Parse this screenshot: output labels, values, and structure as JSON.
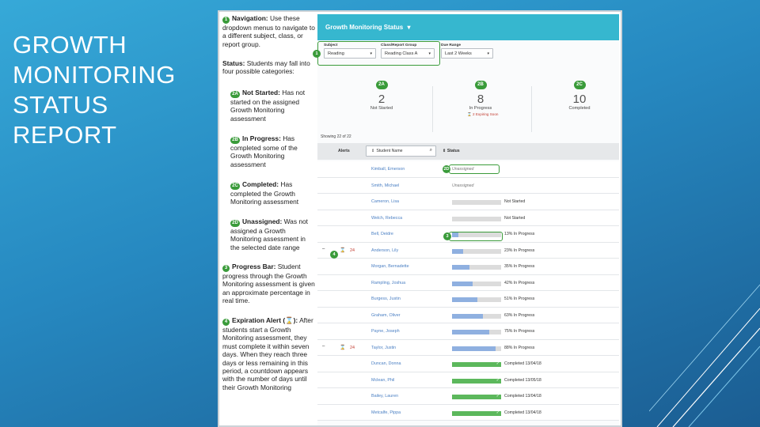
{
  "slide": {
    "title": "GROWTH MONITORING STATUS REPORT"
  },
  "notes": {
    "navigation": {
      "num": "1",
      "heading": "Navigation:",
      "text": "Use these dropdown menus to navigate to a different subject, class, or report group."
    },
    "status_intro": {
      "heading": "Status:",
      "text": "Students may fall into four possible categories:"
    },
    "not_started": {
      "num": "2A",
      "heading": "Not Started:",
      "text": "Has not started on the assigned Growth Monitoring assessment"
    },
    "in_progress": {
      "num": "2B",
      "heading": "In Progress:",
      "text": "Has completed some of the Growth Monitoring assessment"
    },
    "completed": {
      "num": "2C",
      "heading": "Completed:",
      "text": "Has completed the Growth Monitoring assessment"
    },
    "unassigned": {
      "num": "2D",
      "heading": "Unassigned:",
      "text": "Was not assigned a Growth Monitoring assessment in the selected date range"
    },
    "progress_bar": {
      "num": "3",
      "heading": "Progress Bar:",
      "text": "Student progress through the Growth Monitoring assessment is given an approximate percentage in real time."
    },
    "expiration": {
      "num": "4",
      "heading": "Expiration Alert (",
      "heading_end": "):",
      "text": "After students start a Growth Monitoring assessment, they must complete it within seven days. When they reach three days or less remaining in this period, a countdown appears with the number of days until their Growth Monitoring"
    }
  },
  "app": {
    "header_title": "Growth Monitoring Status",
    "header_caret": "▾",
    "filters": [
      {
        "label": "Subject",
        "value": "Reading"
      },
      {
        "label": "Class/Report Group",
        "value": "Reading Class A"
      },
      {
        "label": "Due Range",
        "value": "Last 2 Weeks"
      }
    ],
    "filter_marker": "1",
    "stats": [
      {
        "marker": "2A",
        "value": "2",
        "label": "Not Started"
      },
      {
        "marker": "2B",
        "value": "8",
        "label": "In Progress"
      },
      {
        "marker": "2C",
        "value": "10",
        "label": "Completed"
      }
    ],
    "expiring_soon": "2 Expiring Soon",
    "showing": "Showing 22 of 22",
    "columns": {
      "alerts": "Alerts",
      "student_name": "Student Name",
      "status": "Status"
    },
    "rows": [
      {
        "name": "Kimball, Emerson",
        "type": "unassigned",
        "status": "Unassigned"
      },
      {
        "name": "Smith, Michael",
        "type": "unassigned",
        "status": "Unassigned"
      },
      {
        "name": "Cameron, Lisa",
        "type": "bar",
        "progress": 0,
        "status": "Not Started"
      },
      {
        "name": "Welch, Rebecca",
        "type": "bar",
        "progress": 0,
        "status": "Not Started"
      },
      {
        "name": "Bell, Deidre",
        "type": "bar",
        "progress": 13,
        "status": "13% In Progress"
      },
      {
        "name": "Anderson, Lily",
        "type": "bar",
        "progress": 23,
        "status": "23% In Progress",
        "alert": "24",
        "dash": "–"
      },
      {
        "name": "Morgan, Bernadette",
        "type": "bar",
        "progress": 35,
        "status": "35% In Progress"
      },
      {
        "name": "Rampling, Joshua",
        "type": "bar",
        "progress": 42,
        "status": "42% In Progress"
      },
      {
        "name": "Burgess, Justin",
        "type": "bar",
        "progress": 51,
        "status": "51% In Progress"
      },
      {
        "name": "Graham, Oliver",
        "type": "bar",
        "progress": 63,
        "status": "63% In Progress"
      },
      {
        "name": "Payne, Joseph",
        "type": "bar",
        "progress": 75,
        "status": "75% In Progress"
      },
      {
        "name": "Taylor, Justin",
        "type": "bar",
        "progress": 88,
        "status": "88% In Progress",
        "alert": "24",
        "dash": "–"
      },
      {
        "name": "Duncan, Donna",
        "type": "done",
        "progress": 100,
        "status": "Completed 13/04/18"
      },
      {
        "name": "Mclean, Phil",
        "type": "done",
        "progress": 100,
        "status": "Completed 13/05/18"
      },
      {
        "name": "Bailey, Lauren",
        "type": "done",
        "progress": 100,
        "status": "Completed 13/04/18"
      },
      {
        "name": "Metcalfe, Pippa",
        "type": "done",
        "progress": 100,
        "status": "Completed 13/04/18"
      }
    ],
    "row_markers": {
      "unassigned": "2D",
      "progress": "3",
      "alert": "4"
    }
  },
  "colors": {
    "accent_green": "#3a9b3a",
    "header_teal": "#36b7cf",
    "alert_red": "#c23b2f",
    "progress_blue": "#8fb0e0",
    "complete_green": "#5cb85c"
  },
  "icons": {
    "alert": "hourglass-icon",
    "check": "check-icon",
    "search": "search-icon"
  }
}
